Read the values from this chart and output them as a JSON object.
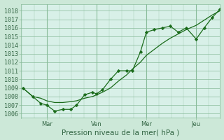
{
  "xlabel": "Pression niveau de la mer( hPa )",
  "background_color": "#cce8d8",
  "plot_background": "#d8f0e8",
  "grid_color": "#88bb99",
  "line_color": "#1a6b1a",
  "yticks": [
    1006,
    1007,
    1008,
    1009,
    1010,
    1011,
    1012,
    1013,
    1014,
    1015,
    1016,
    1017,
    1018
  ],
  "ylim": [
    1005.5,
    1018.8
  ],
  "xtick_labels": [
    "Mar",
    "Ven",
    "Mer",
    "Jeu"
  ],
  "xtick_positions": [
    0.13,
    0.38,
    0.63,
    0.88
  ],
  "xlim": [
    0.0,
    1.0
  ],
  "vline_positions": [
    0.13,
    0.38,
    0.63,
    0.88
  ],
  "series1_x": [
    0.01,
    0.06,
    0.1,
    0.13,
    0.17,
    0.21,
    0.25,
    0.28,
    0.32,
    0.36,
    0.38,
    0.41,
    0.45,
    0.49,
    0.53,
    0.56,
    0.6,
    0.63,
    0.67,
    0.71,
    0.75,
    0.79,
    0.83,
    0.88,
    0.92,
    0.96,
    1.0
  ],
  "series1_y": [
    1009.0,
    1008.0,
    1007.2,
    1007.0,
    1006.3,
    1006.5,
    1006.5,
    1007.0,
    1008.2,
    1008.5,
    1008.3,
    1008.8,
    1010.0,
    1011.0,
    1011.0,
    1011.0,
    1013.2,
    1015.5,
    1015.8,
    1016.0,
    1016.2,
    1015.5,
    1016.0,
    1014.7,
    1016.0,
    1017.2,
    1018.2
  ],
  "series2_x": [
    0.01,
    0.06,
    0.1,
    0.13,
    0.17,
    0.21,
    0.25,
    0.28,
    0.32,
    0.36,
    0.38,
    0.41,
    0.45,
    0.49,
    0.53,
    0.56,
    0.6,
    0.63,
    0.67,
    0.71,
    0.75,
    0.79,
    0.83,
    0.88,
    0.92,
    0.96,
    1.0
  ],
  "series2_y": [
    1009.0,
    1008.0,
    1007.8,
    1007.5,
    1007.3,
    1007.3,
    1007.4,
    1007.5,
    1007.8,
    1008.0,
    1008.2,
    1008.5,
    1009.0,
    1009.8,
    1010.5,
    1011.2,
    1012.0,
    1012.8,
    1013.5,
    1014.2,
    1014.8,
    1015.3,
    1015.8,
    1016.3,
    1016.9,
    1017.5,
    1018.0
  ],
  "font_color": "#336644",
  "tick_fontsize": 6.0,
  "xlabel_fontsize": 7.5
}
